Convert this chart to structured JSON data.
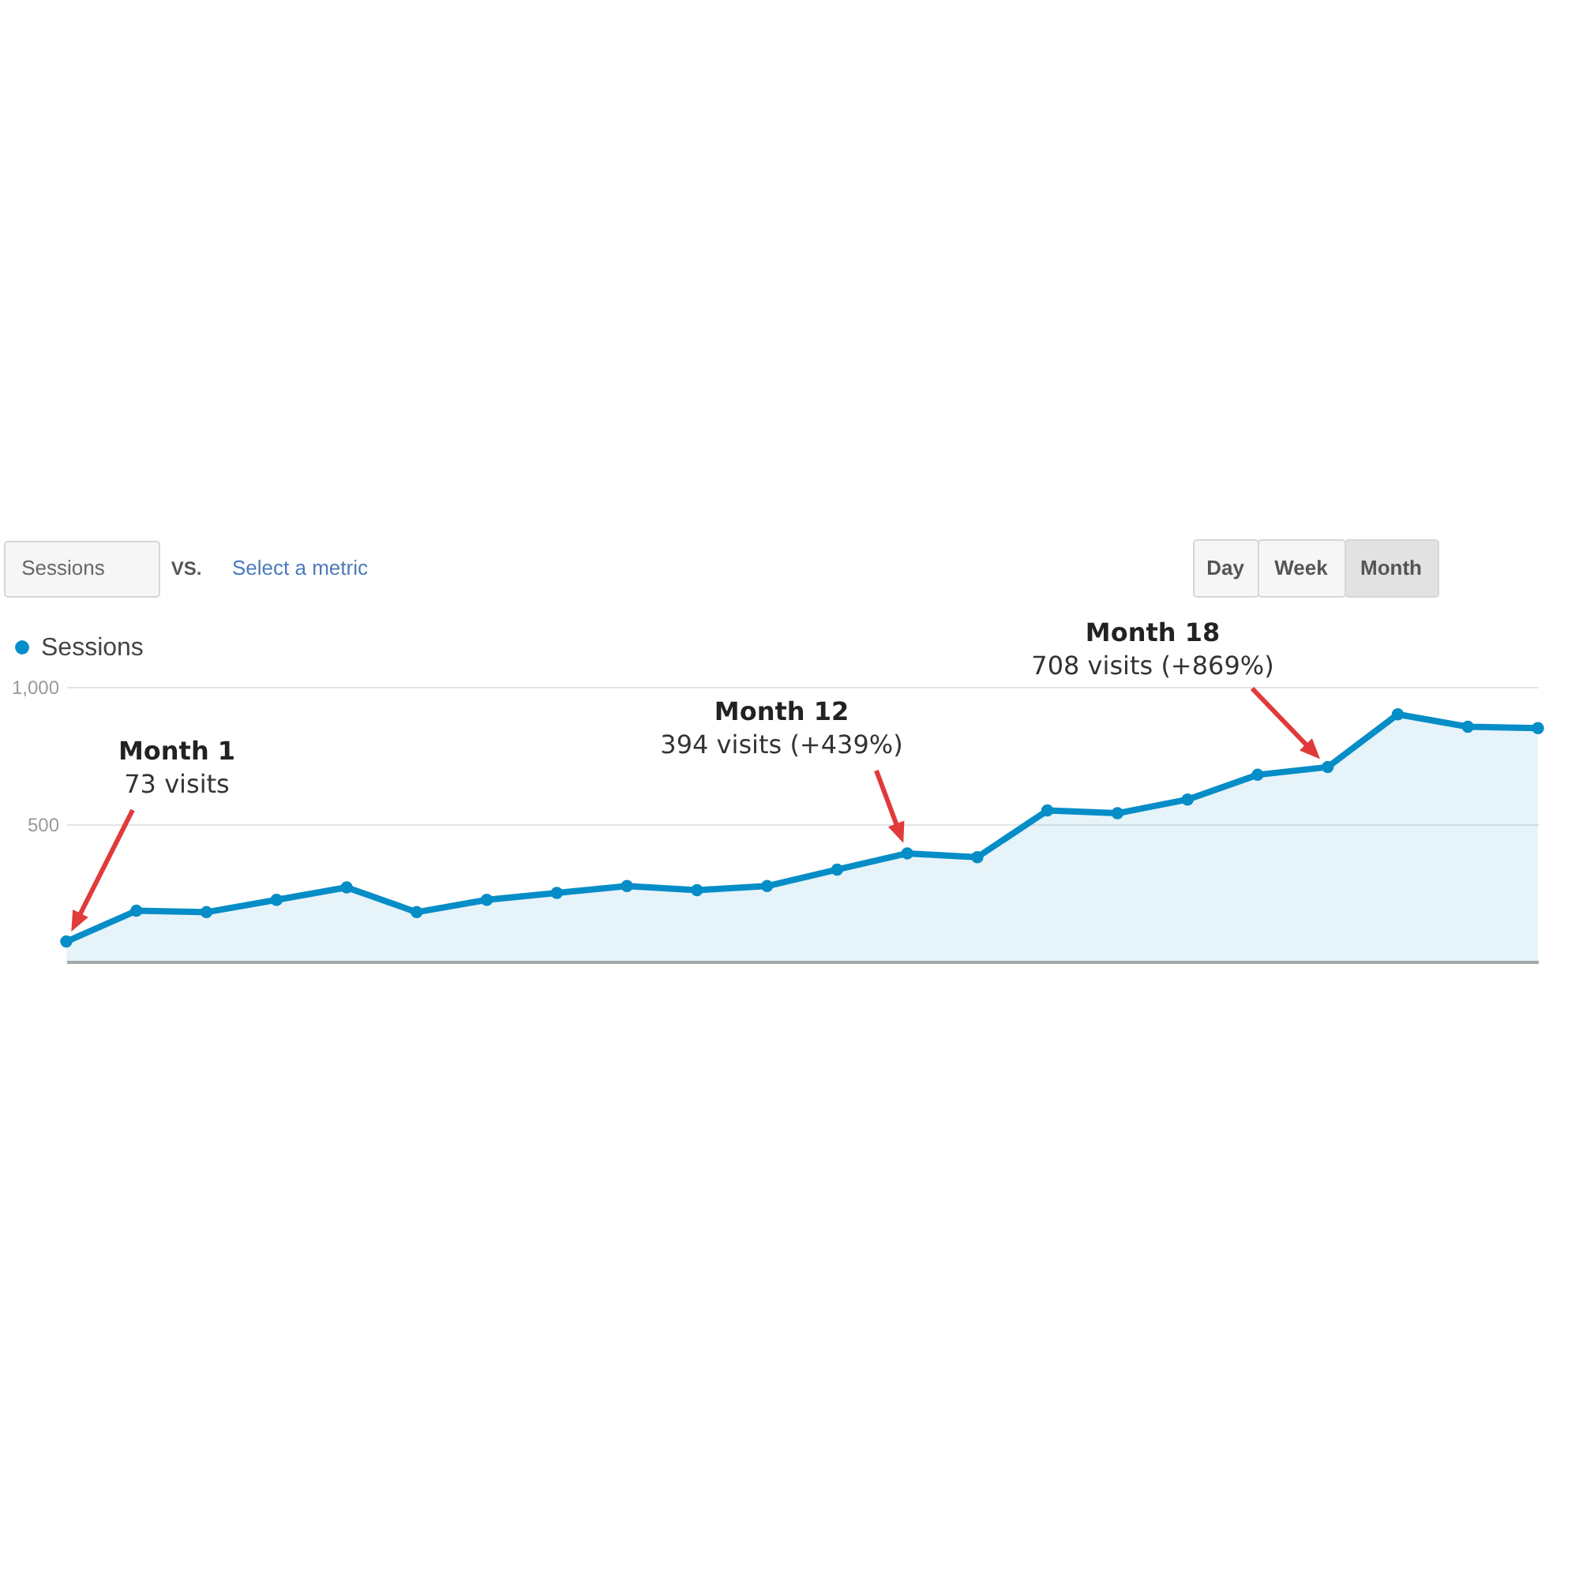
{
  "chart_data": {
    "type": "area",
    "categories": [
      null,
      null,
      null,
      null,
      null,
      null,
      null,
      null,
      null,
      null,
      null,
      null,
      null,
      null,
      null,
      null,
      null,
      null,
      null,
      null,
      null,
      null
    ],
    "series": [
      {
        "name": "Sessions",
        "color": "#058dc7",
        "values": [
          73,
          185,
          180,
          225,
          270,
          180,
          225,
          250,
          275,
          260,
          275,
          335,
          394,
          380,
          550,
          540,
          590,
          680,
          708,
          900,
          855,
          850
        ]
      }
    ],
    "ylim": [
      0,
      1000
    ],
    "yticks": [
      500,
      {
        "value": 1000,
        "label": "1,000"
      }
    ],
    "grid": "y",
    "legend": "top left",
    "marker": "circle",
    "tick_labels": "y",
    "annotations": [
      "Sessions",
      "VS.",
      "Select a metric",
      "Day",
      "Week",
      "Month",
      "Month 1",
      "73 visits",
      "Month 12",
      "394 visits (+439%)",
      "Month 18",
      "708 visits (+869%)"
    ]
  }
}
